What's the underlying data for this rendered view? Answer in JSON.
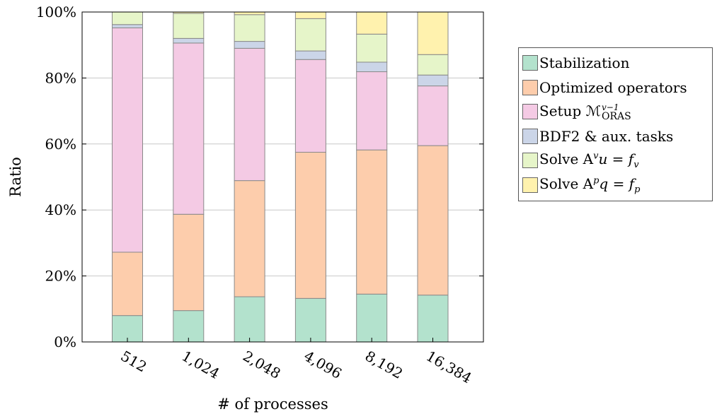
{
  "chart_data": {
    "type": "bar",
    "stacked": true,
    "normalized": true,
    "categories": [
      "512",
      "1,024",
      "2,048",
      "4,096",
      "8,192",
      "16,384"
    ],
    "xlabel": "# of processes",
    "ylabel": "Ratio",
    "ylim": [
      0,
      100
    ],
    "yticks": [
      "0%",
      "20%",
      "40%",
      "60%",
      "80%",
      "100%"
    ],
    "grid": true,
    "legend_position": "right",
    "series": [
      {
        "name": "Stabilization",
        "color": "#b3e2cd",
        "values": [
          8.0,
          9.5,
          13.7,
          13.2,
          14.5,
          14.2
        ]
      },
      {
        "name": "Optimized operators",
        "color": "#fdcdac",
        "values": [
          19.2,
          29.2,
          35.2,
          44.3,
          43.7,
          45.3
        ]
      },
      {
        "name": "Setup ℳ^{v⁻¹}_{ORAS}",
        "color": "#f4cae4",
        "values": [
          68.0,
          51.9,
          40.1,
          28.1,
          23.7,
          18.1
        ]
      },
      {
        "name": "BDF2 & aux. tasks",
        "color": "#cbd5e8",
        "values": [
          1.0,
          1.4,
          2.1,
          2.6,
          2.9,
          3.3
        ]
      },
      {
        "name": "Solve Aᵛu = fᵥ",
        "color": "#e6f5c9",
        "values": [
          3.8,
          7.6,
          8.1,
          9.8,
          8.5,
          6.2
        ]
      },
      {
        "name": "Solve Aᵖq = fₚ",
        "color": "#fff2ae",
        "values": [
          0.0,
          0.4,
          0.8,
          2.0,
          6.7,
          12.9
        ]
      }
    ]
  },
  "legend": {
    "items": [
      {
        "label": "Stabilization",
        "color": "#b3e2cd"
      },
      {
        "label": "Optimized operators",
        "color": "#fdcdac"
      },
      {
        "label": "Setup ℳ",
        "sup": "v−1",
        "sub": "ORAS",
        "color": "#f4cae4"
      },
      {
        "label": "BDF2 & aux. tasks",
        "color": "#cbd5e8"
      },
      {
        "label": "Solve A",
        "sup": "v",
        "rest": "u = f",
        "sub": "v",
        "color": "#e6f5c9"
      },
      {
        "label": "Solve A",
        "sup": "p",
        "rest": "q = f",
        "sub": "p",
        "color": "#fff2ae"
      }
    ]
  }
}
